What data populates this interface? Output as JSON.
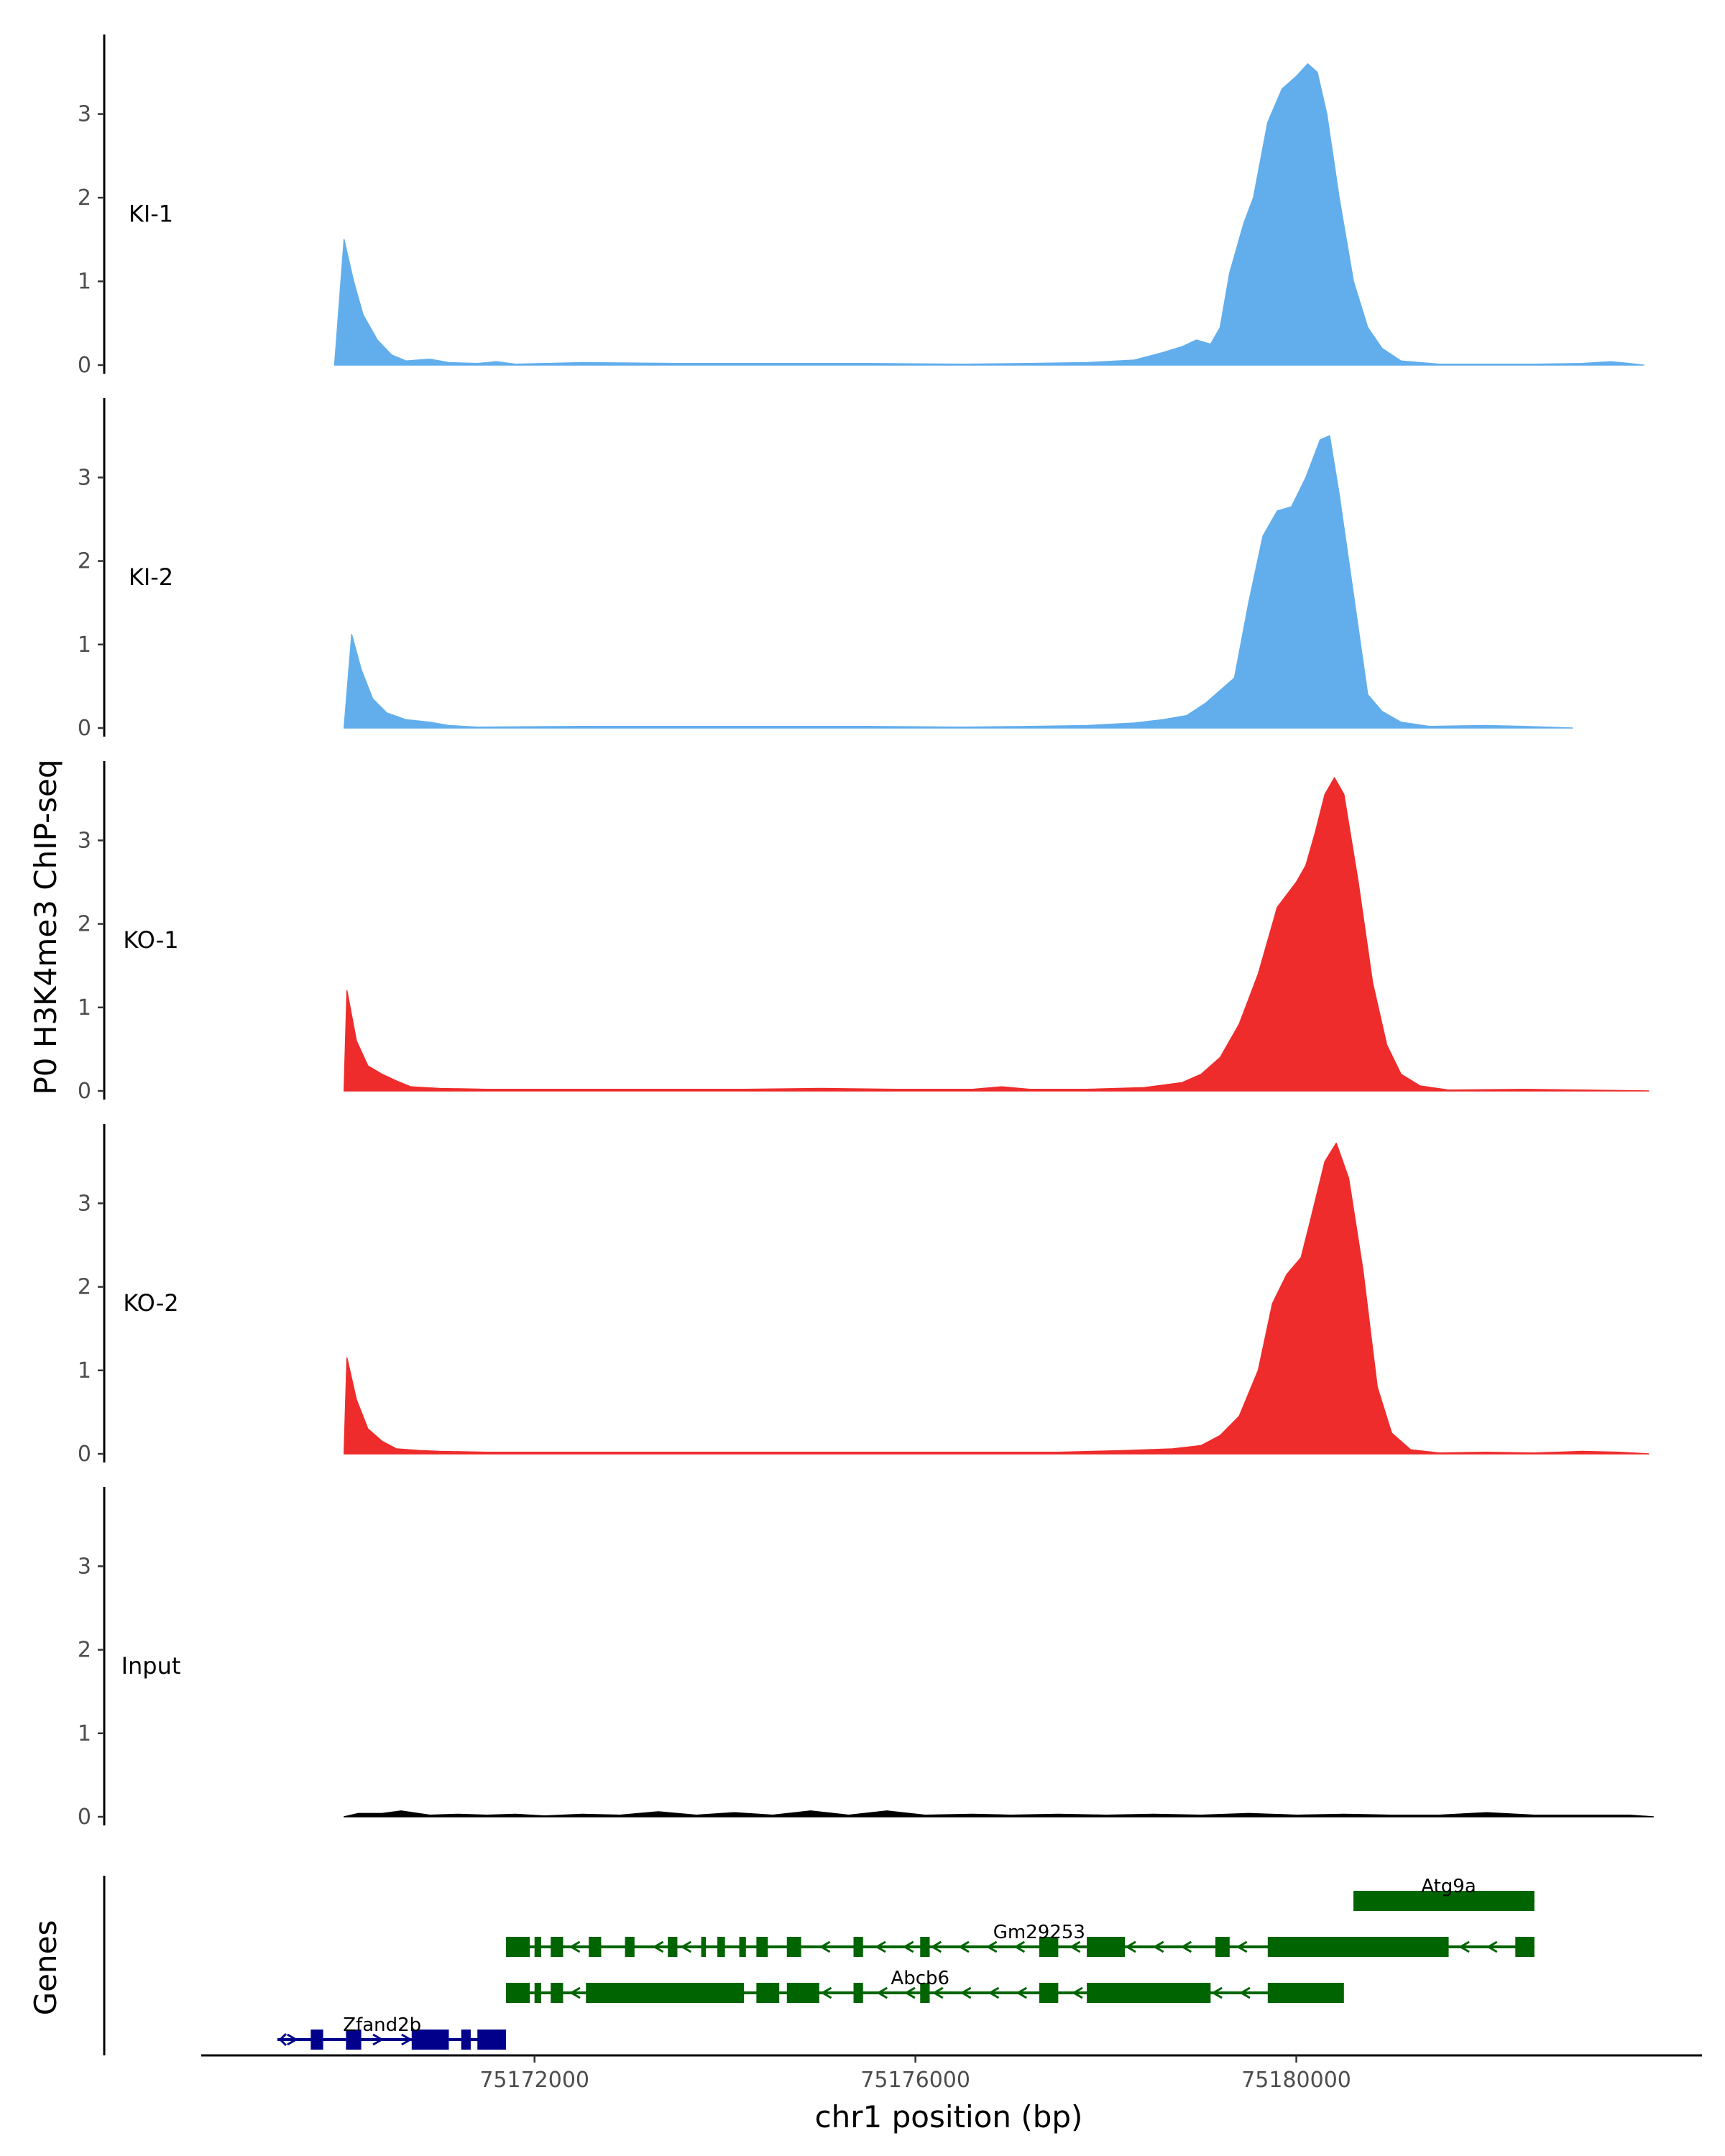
{
  "chart_data": {
    "type": "area",
    "ylabel": "P0 H3K4me3 ChIP-seq",
    "xlabel": "chr1 position (bp)",
    "xlim": [
      75168500,
      75184200
    ],
    "x_ticks": [
      75172000,
      75176000,
      75180000
    ],
    "x_tick_labels": [
      "75172000",
      "75176000",
      "75180000"
    ],
    "ylim": [
      0,
      3.95
    ],
    "y_ticks": [
      0,
      1,
      2,
      3
    ],
    "y_tick_labels": [
      "0",
      "1",
      "2",
      "3"
    ],
    "colors": {
      "KI": "#62AEEC",
      "KO": "#EE2C2C",
      "Input": "#000000",
      "gene_minus": "#006400",
      "gene_plus": "#00008B",
      "axis": "#000000"
    },
    "tracks": [
      {
        "name": "KI-1",
        "color": "#62AEEC",
        "points": [
          [
            75169900,
            0
          ],
          [
            75170000,
            1.5
          ],
          [
            75170100,
            1.0
          ],
          [
            75170200,
            0.6
          ],
          [
            75170350,
            0.3
          ],
          [
            75170500,
            0.12
          ],
          [
            75170650,
            0.05
          ],
          [
            75170900,
            0.07
          ],
          [
            75171100,
            0.03
          ],
          [
            75171400,
            0.02
          ],
          [
            75171600,
            0.04
          ],
          [
            75171800,
            0.01
          ],
          [
            75172500,
            0.03
          ],
          [
            75173500,
            0.02
          ],
          [
            75174500,
            0.02
          ],
          [
            75175500,
            0.02
          ],
          [
            75176500,
            0.01
          ],
          [
            75177200,
            0.02
          ],
          [
            75177800,
            0.03
          ],
          [
            75178300,
            0.06
          ],
          [
            75178600,
            0.15
          ],
          [
            75178800,
            0.22
          ],
          [
            75178950,
            0.3
          ],
          [
            75179100,
            0.25
          ],
          [
            75179200,
            0.45
          ],
          [
            75179300,
            1.1
          ],
          [
            75179450,
            1.7
          ],
          [
            75179550,
            2.0
          ],
          [
            75179700,
            2.9
          ],
          [
            75179850,
            3.3
          ],
          [
            75180000,
            3.45
          ],
          [
            75180120,
            3.6
          ],
          [
            75180220,
            3.5
          ],
          [
            75180320,
            3.0
          ],
          [
            75180450,
            2.0
          ],
          [
            75180600,
            1.0
          ],
          [
            75180750,
            0.45
          ],
          [
            75180900,
            0.2
          ],
          [
            75181100,
            0.05
          ],
          [
            75181500,
            0.01
          ],
          [
            75182500,
            0.01
          ],
          [
            75183000,
            0.02
          ],
          [
            75183300,
            0.04
          ],
          [
            75183500,
            0.02
          ],
          [
            75183650,
            0
          ]
        ]
      },
      {
        "name": "KI-2",
        "color": "#62AEEC",
        "points": [
          [
            75170000,
            0
          ],
          [
            75170080,
            1.12
          ],
          [
            75170180,
            0.7
          ],
          [
            75170300,
            0.35
          ],
          [
            75170450,
            0.18
          ],
          [
            75170650,
            0.1
          ],
          [
            75170900,
            0.07
          ],
          [
            75171100,
            0.03
          ],
          [
            75171400,
            0.01
          ],
          [
            75172500,
            0.02
          ],
          [
            75173500,
            0.02
          ],
          [
            75174500,
            0.02
          ],
          [
            75175500,
            0.02
          ],
          [
            75176500,
            0.01
          ],
          [
            75177200,
            0.02
          ],
          [
            75177800,
            0.03
          ],
          [
            75178300,
            0.06
          ],
          [
            75178600,
            0.1
          ],
          [
            75178850,
            0.15
          ],
          [
            75179050,
            0.3
          ],
          [
            75179200,
            0.45
          ],
          [
            75179350,
            0.6
          ],
          [
            75179500,
            1.5
          ],
          [
            75179650,
            2.3
          ],
          [
            75179800,
            2.6
          ],
          [
            75179950,
            2.65
          ],
          [
            75180100,
            3.0
          ],
          [
            75180250,
            3.45
          ],
          [
            75180350,
            3.5
          ],
          [
            75180450,
            2.8
          ],
          [
            75180600,
            1.6
          ],
          [
            75180750,
            0.4
          ],
          [
            75180900,
            0.2
          ],
          [
            75181100,
            0.07
          ],
          [
            75181400,
            0.02
          ],
          [
            75182000,
            0.03
          ],
          [
            75182400,
            0.02
          ],
          [
            75182900,
            0
          ]
        ]
      },
      {
        "name": "KO-1",
        "color": "#EE2C2C",
        "points": [
          [
            75170000,
            0
          ],
          [
            75170030,
            1.2
          ],
          [
            75170130,
            0.6
          ],
          [
            75170250,
            0.3
          ],
          [
            75170400,
            0.2
          ],
          [
            75170550,
            0.12
          ],
          [
            75170700,
            0.05
          ],
          [
            75171000,
            0.03
          ],
          [
            75171500,
            0.02
          ],
          [
            75172200,
            0.02
          ],
          [
            75172800,
            0.02
          ],
          [
            75173500,
            0.02
          ],
          [
            75174200,
            0.02
          ],
          [
            75175000,
            0.03
          ],
          [
            75175800,
            0.02
          ],
          [
            75176600,
            0.02
          ],
          [
            75176900,
            0.05
          ],
          [
            75177200,
            0.02
          ],
          [
            75177800,
            0.02
          ],
          [
            75178400,
            0.04
          ],
          [
            75178800,
            0.1
          ],
          [
            75179000,
            0.2
          ],
          [
            75179200,
            0.4
          ],
          [
            75179400,
            0.8
          ],
          [
            75179600,
            1.4
          ],
          [
            75179800,
            2.2
          ],
          [
            75180000,
            2.5
          ],
          [
            75180100,
            2.7
          ],
          [
            75180200,
            3.1
          ],
          [
            75180300,
            3.55
          ],
          [
            75180400,
            3.75
          ],
          [
            75180500,
            3.55
          ],
          [
            75180650,
            2.5
          ],
          [
            75180800,
            1.3
          ],
          [
            75180950,
            0.55
          ],
          [
            75181100,
            0.2
          ],
          [
            75181300,
            0.06
          ],
          [
            75181600,
            0.01
          ],
          [
            75182400,
            0.02
          ],
          [
            75183000,
            0.01
          ],
          [
            75183700,
            0
          ]
        ]
      },
      {
        "name": "KO-2",
        "color": "#EE2C2C",
        "points": [
          [
            75170000,
            0
          ],
          [
            75170030,
            1.15
          ],
          [
            75170130,
            0.65
          ],
          [
            75170250,
            0.3
          ],
          [
            75170400,
            0.15
          ],
          [
            75170550,
            0.06
          ],
          [
            75170800,
            0.04
          ],
          [
            75171000,
            0.03
          ],
          [
            75171500,
            0.02
          ],
          [
            75172200,
            0.02
          ],
          [
            75173000,
            0.02
          ],
          [
            75173800,
            0.02
          ],
          [
            75174500,
            0.02
          ],
          [
            75175300,
            0.02
          ],
          [
            75176000,
            0.02
          ],
          [
            75176800,
            0.02
          ],
          [
            75177500,
            0.02
          ],
          [
            75178200,
            0.04
          ],
          [
            75178700,
            0.06
          ],
          [
            75179000,
            0.1
          ],
          [
            75179200,
            0.22
          ],
          [
            75179400,
            0.45
          ],
          [
            75179600,
            1.0
          ],
          [
            75179750,
            1.8
          ],
          [
            75179900,
            2.15
          ],
          [
            75180050,
            2.35
          ],
          [
            75180150,
            2.8
          ],
          [
            75180300,
            3.5
          ],
          [
            75180420,
            3.72
          ],
          [
            75180550,
            3.3
          ],
          [
            75180700,
            2.2
          ],
          [
            75180850,
            0.8
          ],
          [
            75181000,
            0.25
          ],
          [
            75181200,
            0.05
          ],
          [
            75181500,
            0.01
          ],
          [
            75182000,
            0.02
          ],
          [
            75182500,
            0.01
          ],
          [
            75183000,
            0.03
          ],
          [
            75183400,
            0.02
          ],
          [
            75183700,
            0
          ]
        ]
      },
      {
        "name": "Input",
        "color": "#000000",
        "points": [
          [
            75170000,
            0
          ],
          [
            75170150,
            0.04
          ],
          [
            75170400,
            0.04
          ],
          [
            75170600,
            0.07
          ],
          [
            75170900,
            0.02
          ],
          [
            75171200,
            0.03
          ],
          [
            75171500,
            0.02
          ],
          [
            75171800,
            0.03
          ],
          [
            75172100,
            0.01
          ],
          [
            75172500,
            0.03
          ],
          [
            75172900,
            0.02
          ],
          [
            75173300,
            0.06
          ],
          [
            75173700,
            0.02
          ],
          [
            75174100,
            0.05
          ],
          [
            75174500,
            0.02
          ],
          [
            75174900,
            0.07
          ],
          [
            75175300,
            0.02
          ],
          [
            75175700,
            0.07
          ],
          [
            75176100,
            0.02
          ],
          [
            75176600,
            0.03
          ],
          [
            75177000,
            0.02
          ],
          [
            75177500,
            0.03
          ],
          [
            75178000,
            0.02
          ],
          [
            75178500,
            0.03
          ],
          [
            75179000,
            0.02
          ],
          [
            75179500,
            0.04
          ],
          [
            75180000,
            0.02
          ],
          [
            75180500,
            0.03
          ],
          [
            75181000,
            0.02
          ],
          [
            75181500,
            0.02
          ],
          [
            75182000,
            0.05
          ],
          [
            75182500,
            0.02
          ],
          [
            75183000,
            0.02
          ],
          [
            75183500,
            0.02
          ],
          [
            75183750,
            0
          ]
        ]
      }
    ],
    "genes_title": "Genes",
    "genes": [
      {
        "name": "Atg9a",
        "strand": "-",
        "color": "#006400",
        "row": 0,
        "start": 75180600,
        "end": 75182500,
        "label_x": 75181600,
        "exons": [
          [
            75180600,
            75182500
          ]
        ]
      },
      {
        "name": "Gm29253",
        "strand": "-",
        "color": "#006400",
        "row": 1,
        "start": 75171700,
        "end": 75182500,
        "label_x": 75177300,
        "exons": [
          [
            75171700,
            75171950
          ],
          [
            75172000,
            75172070
          ],
          [
            75172170,
            75172300
          ],
          [
            75172570,
            75172700
          ],
          [
            75172950,
            75173050
          ],
          [
            75173400,
            75173500
          ],
          [
            75173750,
            75173800
          ],
          [
            75173920,
            75174000
          ],
          [
            75174150,
            75174220
          ],
          [
            75174330,
            75174450
          ],
          [
            75174650,
            75174800
          ],
          [
            75175350,
            75175450
          ],
          [
            75176050,
            75176150
          ],
          [
            75177300,
            75177500
          ],
          [
            75177800,
            75178200
          ],
          [
            75179150,
            75179300
          ],
          [
            75179700,
            75181600
          ],
          [
            75182300,
            75182500
          ]
        ]
      },
      {
        "name": "Abcb6",
        "strand": "-",
        "color": "#006400",
        "row": 2,
        "start": 75171700,
        "end": 75180200,
        "label_x": 75176050,
        "exons": [
          [
            75171700,
            75171950
          ],
          [
            75172000,
            75172070
          ],
          [
            75172170,
            75172300
          ],
          [
            75172540,
            75174200
          ],
          [
            75174330,
            75174570
          ],
          [
            75174650,
            75174990
          ],
          [
            75175350,
            75175450
          ],
          [
            75176050,
            75176150
          ],
          [
            75177300,
            75177500
          ],
          [
            75177800,
            75179100
          ],
          [
            75179700,
            75180500
          ]
        ]
      },
      {
        "name": "Zfand2b",
        "strand": "+",
        "color": "#00008B",
        "row": 3,
        "start": 75169300,
        "end": 75171700,
        "label_x": 75170400,
        "exons": [
          [
            75169650,
            75169780
          ],
          [
            75170020,
            75170180
          ],
          [
            75170710,
            75171100
          ],
          [
            75171230,
            75171330
          ],
          [
            75171400,
            75171700
          ]
        ]
      }
    ]
  }
}
